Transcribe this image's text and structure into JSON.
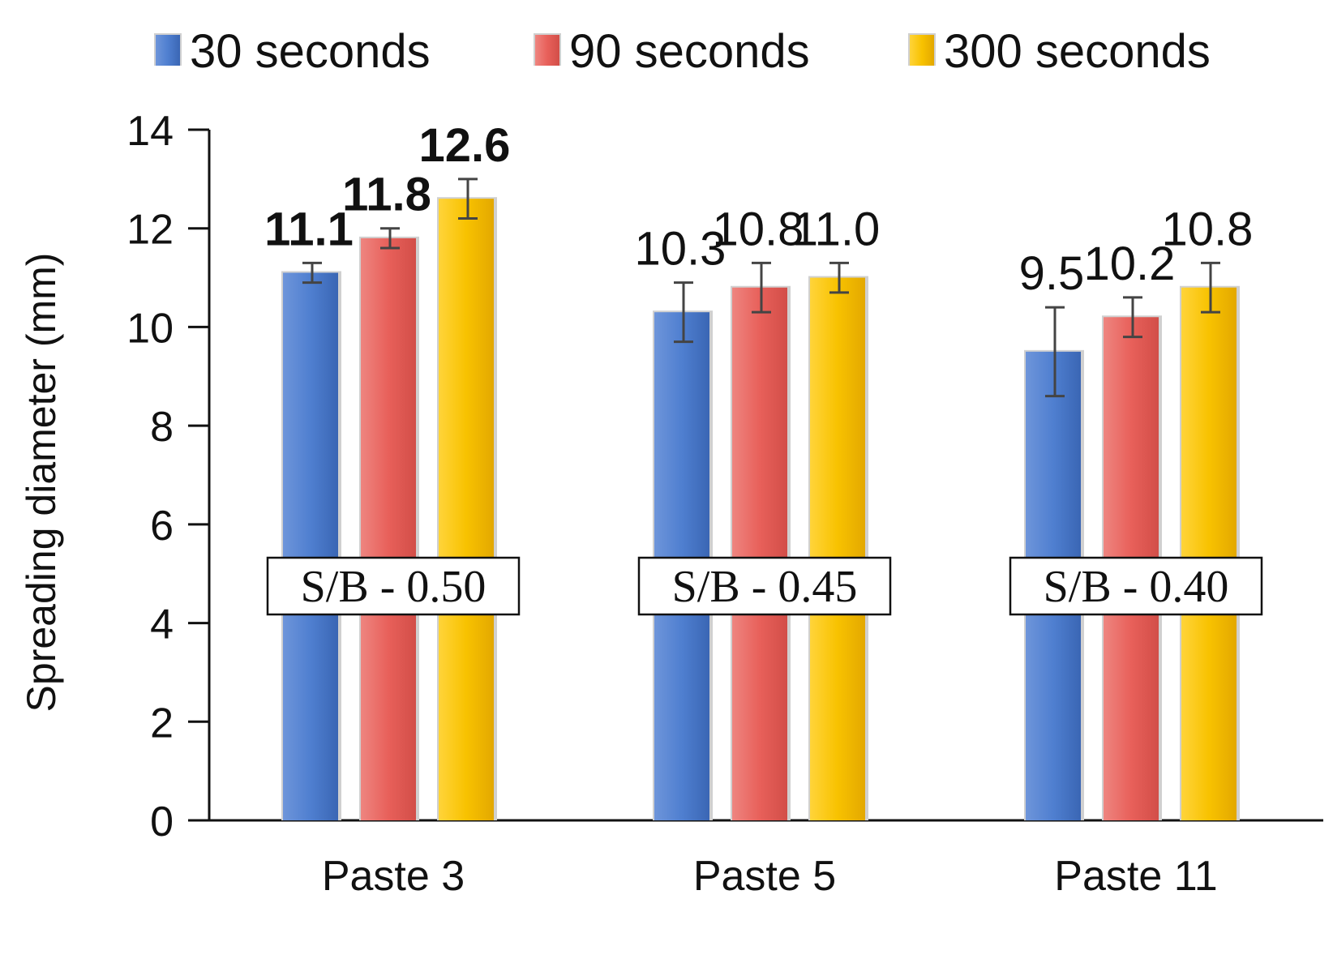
{
  "chart_data": {
    "type": "bar",
    "title": "",
    "xlabel": "",
    "ylabel": "Spreading diameter (mm)",
    "ylim": [
      0,
      14
    ],
    "yticks": [
      "0",
      "2",
      "4",
      "6",
      "8",
      "10",
      "12",
      "14"
    ],
    "grid": false,
    "legend_position": "top",
    "categories": [
      "Paste 3",
      "Paste 5",
      "Paste 11"
    ],
    "category_annotations": [
      "S/B - 0.50",
      "S/B - 0.45",
      "S/B - 0.40"
    ],
    "series": [
      {
        "name": "30 seconds",
        "color": "#4472C4",
        "values": [
          11.1,
          10.3,
          9.5
        ],
        "labels": [
          "11.1",
          "10.3",
          "9.5"
        ],
        "error": [
          0.2,
          0.6,
          0.9
        ]
      },
      {
        "name": "90 seconds",
        "color": "#E8605A",
        "values": [
          11.8,
          10.8,
          10.2
        ],
        "labels": [
          "11.8",
          "10.8",
          "10.2"
        ],
        "error": [
          0.2,
          0.5,
          0.4
        ]
      },
      {
        "name": "300 seconds",
        "color": "#F5BD00",
        "values": [
          12.6,
          11.0,
          10.8
        ],
        "labels": [
          "12.6",
          "11.0",
          "10.8"
        ],
        "error": [
          0.4,
          0.3,
          0.5
        ]
      }
    ],
    "bold_labels_category": "Paste 3"
  }
}
